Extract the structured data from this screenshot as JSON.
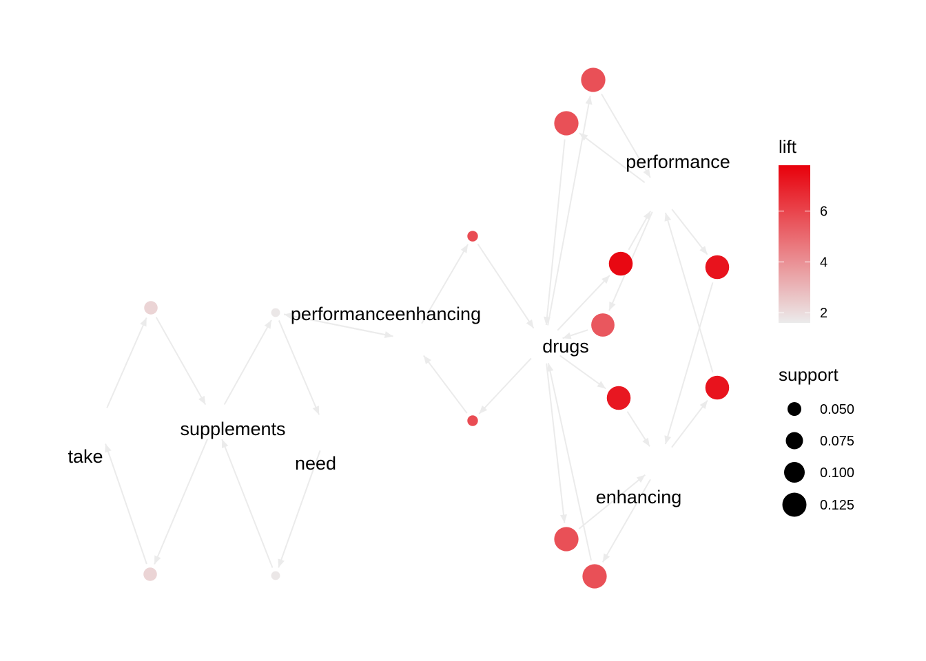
{
  "graph": {
    "terms": [
      {
        "id": "take",
        "label": "take"
      },
      {
        "id": "supplements",
        "label": "supplements"
      },
      {
        "id": "need",
        "label": "need"
      },
      {
        "id": "performanceenhancing",
        "label": "performanceenhancing"
      },
      {
        "id": "drugs",
        "label": "drugs"
      },
      {
        "id": "performance",
        "label": "performance"
      },
      {
        "id": "enhancing",
        "label": "enhancing"
      }
    ],
    "rules": [
      {
        "id": "r1",
        "lhs": "take",
        "rhs": "supplements",
        "support": 0.032,
        "lift": 2.2
      },
      {
        "id": "r2",
        "lhs": "supplements",
        "rhs": "take",
        "support": 0.032,
        "lift": 2.2
      },
      {
        "id": "r3",
        "lhs": "supplements",
        "rhs": "performanceenhancing",
        "support": 0.018,
        "lift": 1.7
      },
      {
        "id": "r4",
        "lhs": "performanceenhancing",
        "rhs": "need",
        "support": 0.018,
        "lift": 1.7
      },
      {
        "id": "r5",
        "lhs": "need",
        "rhs": "supplements",
        "support": 0.018,
        "lift": 1.7
      },
      {
        "id": "r6",
        "lhs": "performanceenhancing",
        "rhs": "drugs",
        "support": 0.022,
        "lift": 5.8
      },
      {
        "id": "r7",
        "lhs": "drugs",
        "rhs": "performanceenhancing",
        "support": 0.022,
        "lift": 5.8
      },
      {
        "id": "r8",
        "lhs": "drugs",
        "rhs": "performance",
        "support": 0.11,
        "lift": 5.7
      },
      {
        "id": "r9",
        "lhs": "performance",
        "rhs": "drugs",
        "support": 0.11,
        "lift": 5.7
      },
      {
        "id": "r10",
        "lhs": "drugs",
        "rhs": "enhancing",
        "support": 0.11,
        "lift": 5.7
      },
      {
        "id": "r11",
        "lhs": "enhancing",
        "rhs": "drugs",
        "support": 0.11,
        "lift": 5.7
      },
      {
        "id": "r12",
        "lhs": "drugs",
        "rhs": "performance",
        "support": 0.105,
        "lift": 7.6
      },
      {
        "id": "r13",
        "lhs": "performance",
        "rhs": "drugs",
        "support": 0.1,
        "lift": 5.5
      },
      {
        "id": "r14",
        "lhs": "drugs",
        "rhs": "enhancing",
        "support": 0.105,
        "lift": 7.2
      },
      {
        "id": "r15",
        "lhs": "performance",
        "rhs": "enhancing",
        "support": 0.105,
        "lift": 7.3
      },
      {
        "id": "r16",
        "lhs": "enhancing",
        "rhs": "performance",
        "support": 0.105,
        "lift": 7.3
      }
    ]
  },
  "legend": {
    "lift_title": "lift",
    "lift_ticks": [
      "2",
      "4",
      "6"
    ],
    "lift_tick_values": [
      2,
      4,
      6
    ],
    "lift_range": [
      1.6,
      7.8
    ],
    "color_low": "#ebebeb",
    "color_high": "#e8000b",
    "support_title": "support",
    "support_ticks": [
      "0.050",
      "0.075",
      "0.100",
      "0.125"
    ],
    "support_tick_values": [
      0.05,
      0.075,
      0.1,
      0.125
    ],
    "support_range": [
      0.015,
      0.13
    ]
  }
}
